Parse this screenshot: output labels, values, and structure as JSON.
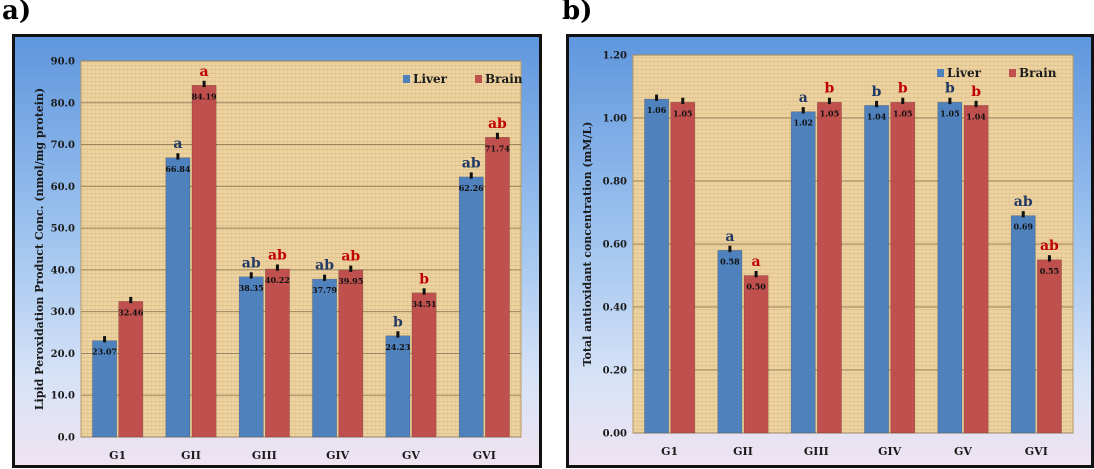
{
  "panels": [
    {
      "label": "a)",
      "chart_data": {
        "type": "bar",
        "categories": [
          "G1",
          "GII",
          "GIII",
          "GIV",
          "GV",
          "GVI"
        ],
        "series": [
          {
            "name": "Liver",
            "color": "#4f81bd",
            "values": [
              23.07,
              66.84,
              38.35,
              37.79,
              24.23,
              62.26
            ],
            "value_labels": [
              "23.07",
              "66.84",
              "38.35",
              "37.79",
              "24.23",
              "62.26"
            ],
            "letters": [
              "",
              "a",
              "ab",
              "ab",
              "b",
              "ab"
            ]
          },
          {
            "name": "Brain",
            "color": "#c0504d",
            "values": [
              32.46,
              84.19,
              40.22,
              39.95,
              34.51,
              71.74
            ],
            "value_labels": [
              "32.46",
              "84.19",
              "40.22",
              "39.95",
              "34.51",
              "71.74"
            ],
            "letters": [
              "",
              "a",
              "ab",
              "ab",
              "b",
              "ab"
            ]
          }
        ],
        "ylabel": "Lipid Peroxidation Product Conc. (nmol/mg protein)",
        "ylim": [
          0,
          90
        ],
        "yticks": [
          "0.0",
          "10.0",
          "20.0",
          "30.0",
          "40.0",
          "50.0",
          "60.0",
          "70.0",
          "80.0",
          "90.0"
        ],
        "grid": true,
        "legend": "top-right"
      }
    },
    {
      "label": "b)",
      "chart_data": {
        "type": "bar",
        "categories": [
          "G1",
          "GII",
          "GIII",
          "GIV",
          "GV",
          "GVI"
        ],
        "series": [
          {
            "name": "Liver",
            "color": "#4f81bd",
            "values": [
              1.06,
              0.58,
              1.02,
              1.04,
              1.05,
              0.69
            ],
            "value_labels": [
              "1.06",
              "0.58",
              "1.02",
              "1.04",
              "1.05",
              "0.69"
            ],
            "letters": [
              "",
              "a",
              "a",
              "b",
              "b",
              "ab"
            ]
          },
          {
            "name": "Brain",
            "color": "#c0504d",
            "values": [
              1.05,
              0.5,
              1.05,
              1.05,
              1.04,
              0.55
            ],
            "value_labels": [
              "1.05",
              "0.50",
              "1.05",
              "1.05",
              "1.04",
              "0.55"
            ],
            "letters": [
              "",
              "a",
              "b",
              "b",
              "b",
              "ab"
            ]
          }
        ],
        "ylabel": "Total antioxidant concentration (mM/L)",
        "ylim": [
          0,
          1.2
        ],
        "yticks": [
          "0.00",
          "0.20",
          "0.40",
          "0.60",
          "0.80",
          "1.00",
          "1.20"
        ],
        "grid": true,
        "legend": "top-right"
      }
    }
  ]
}
